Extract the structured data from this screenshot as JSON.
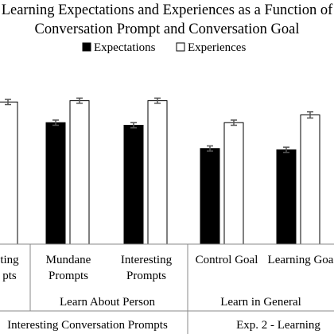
{
  "chart_data": {
    "type": "bar",
    "title_line1": "Learning Expectations and Experiences as a Function of",
    "title_line2": "Conversation Prompt and Conversation Goal",
    "series": [
      {
        "name": "Expectations",
        "color": "#000000",
        "values": [
          null,
          4.7,
          4.6,
          3.7,
          3.65
        ]
      },
      {
        "name": "Experiences",
        "color": "#ffffff",
        "values": [
          5.5,
          5.55,
          5.55,
          4.7,
          5.0
        ]
      }
    ],
    "errors": [
      [
        null,
        0.1,
        0.1,
        0.1,
        0.1
      ],
      [
        0.1,
        0.1,
        0.1,
        0.1,
        0.12
      ]
    ],
    "categories": [
      {
        "line1": "ting",
        "line2": "pts"
      },
      {
        "line1": "Mundane",
        "line2": "Prompts"
      },
      {
        "line1": "Interesting",
        "line2": "Prompts"
      },
      {
        "line1": "Control Goal",
        "line2": ""
      },
      {
        "line1": "Learning Goa",
        "line2": ""
      }
    ],
    "groups": [
      "Learn About Person",
      "Learn in General"
    ],
    "top_groups": [
      "Interesting Conversation Prompts",
      "Exp. 2 - Learning"
    ]
  }
}
